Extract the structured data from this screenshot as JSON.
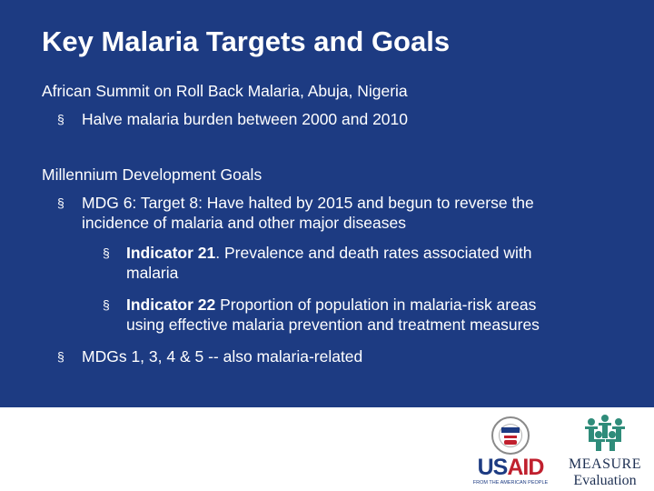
{
  "title": "Key Malaria Targets and Goals",
  "section1": {
    "heading": "African Summit on Roll Back Malaria, Abuja, Nigeria",
    "bullet": "§",
    "item1": "Halve malaria burden between 2000 and 2010"
  },
  "section2": {
    "heading": "Millennium Development Goals",
    "bullet": "§",
    "mdg6_line1": "MDG 6: Target 8: Have halted by 2015 and begun to reverse the",
    "mdg6_line2": "incidence of malaria and other major diseases",
    "ind21_label": "Indicator 21",
    "ind21_text_line1": ". Prevalence and death rates associated with",
    "ind21_text_line2": "malaria",
    "ind22_label": "Indicator 22",
    "ind22_text_line1": " Proportion of population in malaria-risk areas",
    "ind22_text_line2": "using effective malaria prevention and treatment measures",
    "mdgs_related": "MDGs 1, 3, 4 & 5 -- also malaria-related"
  },
  "logos": {
    "usaid_us": "US",
    "usaid_aid": "AID",
    "usaid_tagline": "FROM THE AMERICAN PEOPLE",
    "measure_name": "MEASURE",
    "measure_sub": "Evaluation"
  },
  "colors": {
    "slide_background": "#1d3b82",
    "text": "#ffffff",
    "usaid_blue": "#1d3b82",
    "usaid_red": "#c0202e",
    "measure_teal": "#2f8c7a"
  }
}
